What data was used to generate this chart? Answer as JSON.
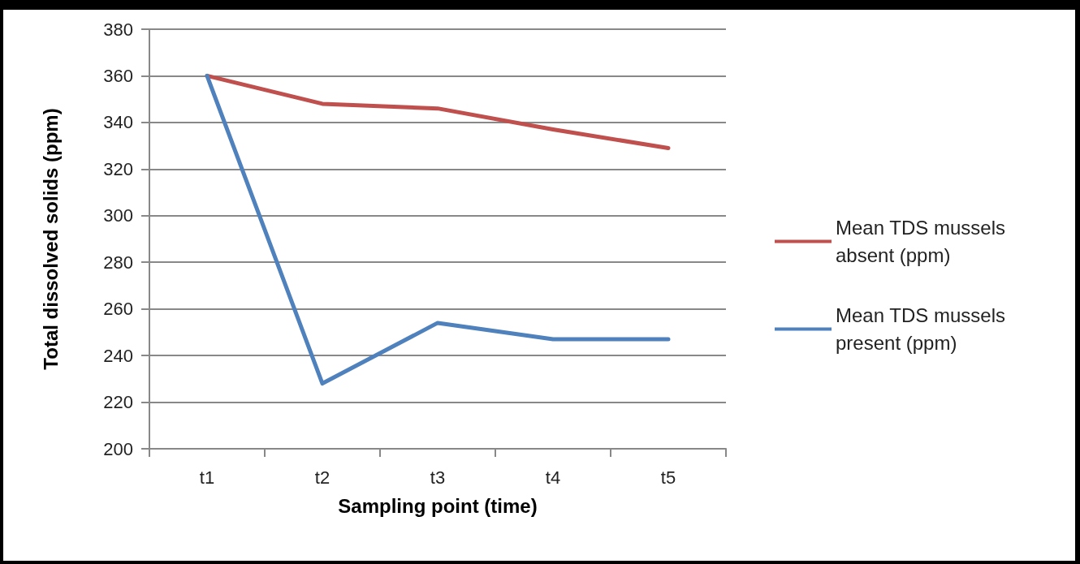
{
  "chart_data": {
    "type": "line",
    "xlabel": "Sampling point (time)",
    "ylabel": "Total dissolved solids (ppm)",
    "categories": [
      "t1",
      "t2",
      "t3",
      "t4",
      "t5"
    ],
    "series": [
      {
        "name": "Mean TDS mussels absent (ppm)",
        "color": "#c0504d",
        "values": [
          360,
          348,
          346,
          337,
          329
        ]
      },
      {
        "name": "Mean TDS mussels present (ppm)",
        "color": "#4f81bd",
        "values": [
          360,
          228,
          254,
          247,
          247
        ]
      }
    ],
    "ylim": [
      200,
      380
    ],
    "yticks": [
      200,
      220,
      240,
      260,
      280,
      300,
      320,
      340,
      360,
      380
    ],
    "grid": "y",
    "legend": "right",
    "marker": "none",
    "line_style": "solid"
  }
}
